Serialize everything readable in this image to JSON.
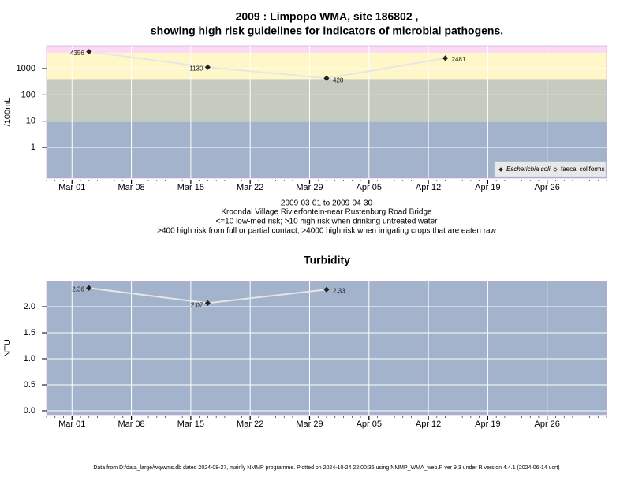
{
  "chart_data": [
    {
      "type": "line",
      "title": [
        "2009 : Limpopo WMA, site 186802 ,",
        "showing high risk guidelines for indicators of microbial pathogens."
      ],
      "subtitle": [
        "2009-03-01 to 2009-04-30",
        "Kroondal Village Rivierfontein-near Rustenburg Road Bridge",
        "<=10 low-med risk; >10 high risk when drinking untreated water",
        ">400 high risk from full or partial contact; >4000 high risk when irrigating crops that are eaten raw"
      ],
      "y_label": "/100mL",
      "log_y": true,
      "x": [
        "2009-03-03",
        "2009-03-17",
        "2009-03-31",
        "2009-04-14"
      ],
      "series": [
        {
          "name": "Escherichia coli",
          "color": "#222222",
          "line_color": "#e6e6e6",
          "marker": "filled-diamond",
          "values": [
            4356,
            1130,
            428,
            2481
          ]
        },
        {
          "name": "faecal coliforms",
          "color": "#222222",
          "line_color": "#e6e6e6",
          "marker": "open-diamond",
          "values": [
            null,
            null,
            null,
            null
          ]
        }
      ],
      "bands": [
        {
          "upto": 10,
          "color": "#a3b3cc"
        },
        {
          "upto": 400,
          "color": "#c5cbbf"
        },
        {
          "upto": 4000,
          "color": "#fff7c8"
        },
        {
          "upto": null,
          "color": "#fcd9f4"
        }
      ],
      "xlim": [
        "2009-02-26",
        "2009-05-03"
      ],
      "xticks": [
        {
          "value": "2009-03-01",
          "label": "Mar 01"
        },
        {
          "value": "2009-03-08",
          "label": "Mar 08"
        },
        {
          "value": "2009-03-15",
          "label": "Mar 15"
        },
        {
          "value": "2009-03-22",
          "label": "Mar 22"
        },
        {
          "value": "2009-03-29",
          "label": "Mar 29"
        },
        {
          "value": "2009-04-05",
          "label": "Apr 05"
        },
        {
          "value": "2009-04-12",
          "label": "Apr 12"
        },
        {
          "value": "2009-04-19",
          "label": "Apr 19"
        },
        {
          "value": "2009-04-26",
          "label": "Apr 26"
        }
      ],
      "ylim": [
        0.068,
        7400
      ],
      "yticks": [
        1,
        10,
        100,
        1000
      ],
      "grid": true,
      "legend": "bottom-right"
    },
    {
      "type": "line",
      "title": [
        "Turbidity"
      ],
      "y_label": "NTU",
      "log_y": false,
      "x": [
        "2009-03-03",
        "2009-03-17",
        "2009-03-31"
      ],
      "series": [
        {
          "name": "Turbidity",
          "color": "#222222",
          "line_color": "#e6e6e6",
          "marker": "filled-diamond",
          "values": [
            2.36,
            2.07,
            2.33
          ]
        }
      ],
      "bands": [
        {
          "upto": null,
          "color": "#a3b3cc"
        }
      ],
      "xlim": [
        "2009-02-26",
        "2009-05-03"
      ],
      "xticks": [
        {
          "value": "2009-03-01",
          "label": "Mar 01"
        },
        {
          "value": "2009-03-08",
          "label": "Mar 08"
        },
        {
          "value": "2009-03-15",
          "label": "Mar 15"
        },
        {
          "value": "2009-03-22",
          "label": "Mar 22"
        },
        {
          "value": "2009-03-29",
          "label": "Mar 29"
        },
        {
          "value": "2009-04-05",
          "label": "Apr 05"
        },
        {
          "value": "2009-04-12",
          "label": "Apr 12"
        },
        {
          "value": "2009-04-19",
          "label": "Apr 19"
        },
        {
          "value": "2009-04-26",
          "label": "Apr 26"
        }
      ],
      "ylim": [
        -0.076,
        2.485
      ],
      "yticks": [
        {
          "value": 0,
          "label": "0.0"
        },
        0.5,
        {
          "value": 1,
          "label": "1.0"
        },
        1.5,
        {
          "value": 2,
          "label": "2.0"
        }
      ],
      "grid": true,
      "legend": null
    }
  ],
  "footer": "Data from D:/data_large/wq/wms.db dated 2024-08-27, mainly NMMP programme. Plotted on 2024-10-24 22:00:36 using NMMP_WMA_web.R ver 9.3 under R version 4.4.1 (2024-06-14 ucrt)"
}
